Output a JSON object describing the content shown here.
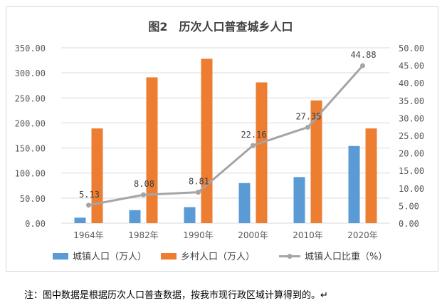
{
  "chart_data": {
    "type": "bar",
    "title": "图2　历次人口普查城乡人口",
    "categories": [
      "1964年",
      "1982年",
      "1990年",
      "2000年",
      "2010年",
      "2020年"
    ],
    "series": [
      {
        "name": "城镇人口（万人）",
        "type": "bar",
        "axis": "left",
        "color": "#5b9bd5",
        "values": [
          11,
          26,
          32,
          80,
          92,
          154
        ]
      },
      {
        "name": "乡村人口（万人）",
        "type": "bar",
        "axis": "left",
        "color": "#ed7d31",
        "values": [
          189,
          291,
          328,
          281,
          245,
          189
        ]
      },
      {
        "name": "城镇人口比重（%）",
        "type": "line",
        "axis": "right",
        "color": "#a5a5a5",
        "values": [
          5.13,
          8.08,
          8.81,
          22.16,
          27.35,
          44.88
        ],
        "labels": [
          "5.13",
          "8.08",
          "8.81",
          "22.16",
          "27.35",
          "44.88"
        ]
      }
    ],
    "left_axis": {
      "ylim": [
        0,
        350
      ],
      "ticks": [
        "0.00",
        "50.00",
        "100.00",
        "150.00",
        "200.00",
        "250.00",
        "300.00",
        "350.00"
      ]
    },
    "right_axis": {
      "ylim": [
        0,
        50
      ],
      "ticks": [
        "0.00",
        "5.00",
        "10.00",
        "15.00",
        "20.00",
        "25.00",
        "30.00",
        "35.00",
        "40.00",
        "45.00",
        "50.00"
      ]
    },
    "grid": true,
    "legend_position": "bottom"
  },
  "note": "注：图中数据是根据历次人口普查数据，按我市现行政区域计算得到的。↵"
}
